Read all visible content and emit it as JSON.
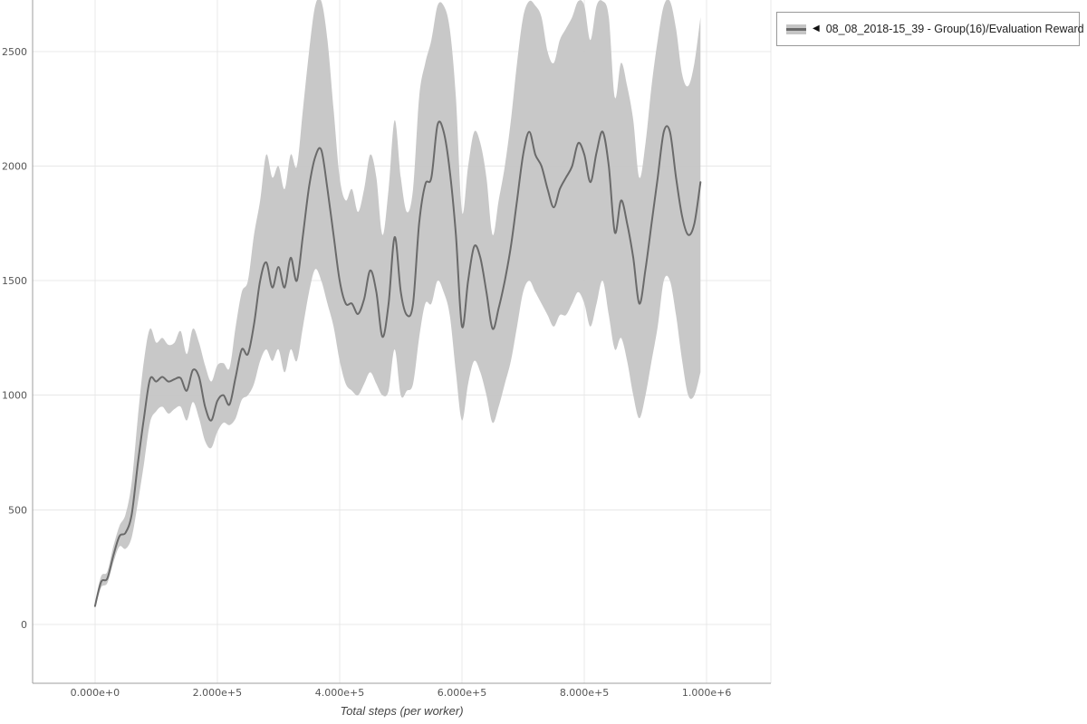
{
  "page": {
    "background": "#ffffff"
  },
  "legend": {
    "marker": "◀",
    "label": "08_08_2018-15_39 - Group(16)/Evaluation Reward"
  },
  "chart_data": {
    "type": "line",
    "title": "",
    "xlabel": "Total steps (per worker)",
    "ylabel": "",
    "xlim": [
      -102000,
      1105000
    ],
    "ylim": [
      -257,
      2725
    ],
    "grid": true,
    "legend_position": "top-right",
    "line_color": "#6a6a6a",
    "band_color": "#c5c5c5",
    "grid_color": "#e8e8e8",
    "axis_color": "#9e9e9e",
    "tick_color": "#555555",
    "x_tick_values": [
      0,
      200000,
      400000,
      600000,
      800000,
      1000000
    ],
    "x_tick_labels": [
      "0.000e+0",
      "2.000e+5",
      "4.000e+5",
      "6.000e+5",
      "8.000e+5",
      "1.000e+6"
    ],
    "y_tick_values": [
      0,
      500,
      1000,
      1500,
      2000,
      2500
    ],
    "y_tick_labels": [
      "0",
      "500",
      "1000",
      "1500",
      "2000",
      "2500"
    ],
    "series": [
      {
        "name": "08_08_2018-15_39 - Group(16)/Evaluation Reward",
        "x": [
          0,
          10000,
          20000,
          30000,
          40000,
          50000,
          60000,
          70000,
          80000,
          90000,
          100000,
          110000,
          120000,
          130000,
          140000,
          150000,
          160000,
          170000,
          180000,
          190000,
          200000,
          210000,
          220000,
          230000,
          240000,
          250000,
          260000,
          270000,
          280000,
          290000,
          300000,
          310000,
          320000,
          330000,
          340000,
          350000,
          360000,
          370000,
          380000,
          390000,
          400000,
          410000,
          420000,
          430000,
          440000,
          450000,
          460000,
          470000,
          480000,
          490000,
          500000,
          510000,
          520000,
          530000,
          540000,
          550000,
          560000,
          570000,
          580000,
          590000,
          600000,
          610000,
          620000,
          630000,
          640000,
          650000,
          660000,
          670000,
          680000,
          690000,
          700000,
          710000,
          720000,
          730000,
          740000,
          750000,
          760000,
          770000,
          780000,
          790000,
          800000,
          810000,
          820000,
          830000,
          840000,
          850000,
          860000,
          870000,
          880000,
          890000,
          900000,
          910000,
          920000,
          930000,
          940000,
          950000,
          960000,
          970000,
          980000,
          990000
        ],
        "mean": [
          80,
          185,
          200,
          300,
          385,
          400,
          480,
          700,
          900,
          1070,
          1060,
          1080,
          1060,
          1070,
          1075,
          1020,
          1110,
          1080,
          950,
          890,
          975,
          1000,
          960,
          1080,
          1200,
          1180,
          1310,
          1500,
          1580,
          1470,
          1560,
          1470,
          1600,
          1500,
          1700,
          1910,
          2040,
          2070,
          1900,
          1700,
          1500,
          1400,
          1400,
          1355,
          1420,
          1545,
          1450,
          1255,
          1400,
          1690,
          1450,
          1350,
          1400,
          1750,
          1920,
          1950,
          2180,
          2150,
          1980,
          1700,
          1300,
          1500,
          1650,
          1600,
          1450,
          1290,
          1380,
          1500,
          1650,
          1850,
          2050,
          2150,
          2050,
          2000,
          1900,
          1820,
          1900,
          1950,
          2000,
          2100,
          2050,
          1930,
          2060,
          2150,
          2000,
          1710,
          1850,
          1750,
          1600,
          1400,
          1550,
          1750,
          1950,
          2150,
          2150,
          1950,
          1780,
          1700,
          1750,
          1930
        ],
        "band_low": [
          70,
          160,
          180,
          270,
          340,
          330,
          380,
          530,
          700,
          880,
          930,
          950,
          920,
          940,
          950,
          890,
          970,
          900,
          800,
          770,
          840,
          880,
          870,
          900,
          980,
          1000,
          1050,
          1150,
          1200,
          1150,
          1200,
          1100,
          1200,
          1150,
          1300,
          1450,
          1550,
          1500,
          1400,
          1300,
          1150,
          1050,
          1020,
          1000,
          1050,
          1100,
          1050,
          1000,
          1020,
          1200,
          1000,
          1020,
          1050,
          1250,
          1400,
          1400,
          1500,
          1450,
          1350,
          1100,
          890,
          1050,
          1150,
          1100,
          1000,
          880,
          950,
          1050,
          1150,
          1300,
          1450,
          1500,
          1450,
          1400,
          1350,
          1300,
          1350,
          1350,
          1400,
          1450,
          1400,
          1300,
          1400,
          1500,
          1350,
          1200,
          1250,
          1150,
          1000,
          900,
          1000,
          1150,
          1300,
          1500,
          1500,
          1350,
          1150,
          1000,
          1000,
          1100
        ],
        "band_high": [
          95,
          210,
          230,
          340,
          430,
          480,
          620,
          900,
          1150,
          1290,
          1230,
          1250,
          1220,
          1230,
          1280,
          1180,
          1290,
          1230,
          1130,
          1060,
          1130,
          1140,
          1120,
          1300,
          1450,
          1500,
          1700,
          1850,
          2050,
          1950,
          2000,
          1900,
          2050,
          2000,
          2250,
          2500,
          2700,
          2720,
          2550,
          2250,
          1950,
          1850,
          1900,
          1800,
          1900,
          2050,
          1950,
          1700,
          1900,
          2200,
          1950,
          1800,
          1900,
          2300,
          2450,
          2550,
          2700,
          2700,
          2600,
          2300,
          1800,
          2000,
          2150,
          2100,
          1950,
          1700,
          1850,
          2000,
          2200,
          2450,
          2650,
          2720,
          2700,
          2650,
          2500,
          2450,
          2550,
          2600,
          2650,
          2720,
          2700,
          2550,
          2700,
          2720,
          2650,
          2300,
          2450,
          2350,
          2200,
          1950,
          2100,
          2350,
          2550,
          2700,
          2720,
          2600,
          2400,
          2350,
          2450,
          2650
        ]
      }
    ]
  }
}
